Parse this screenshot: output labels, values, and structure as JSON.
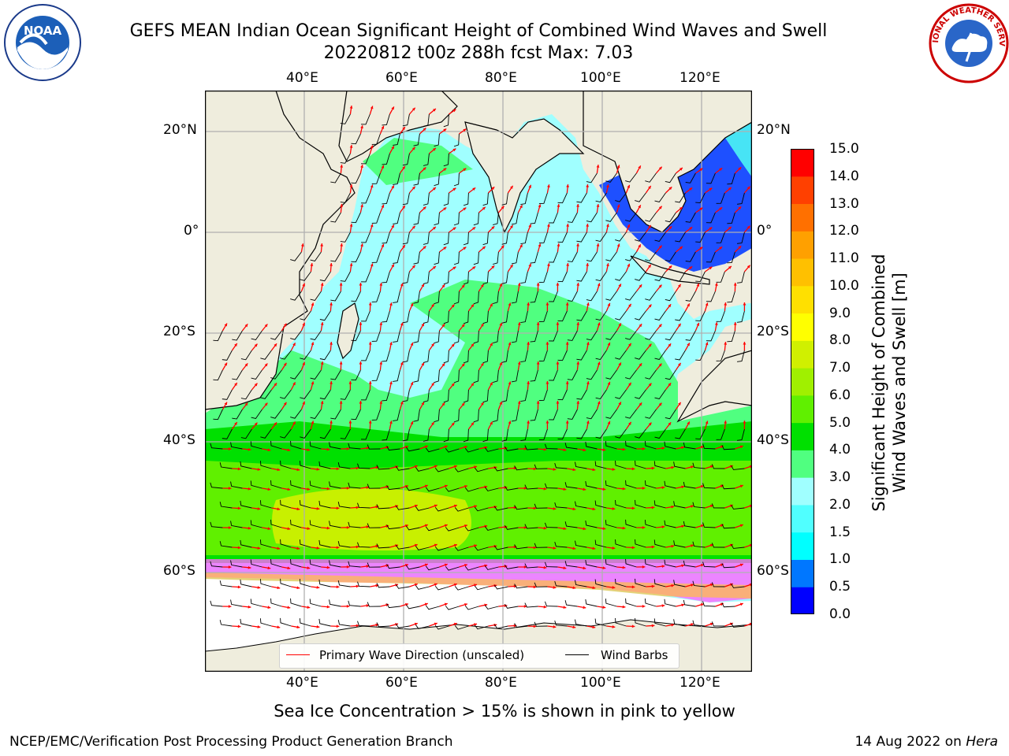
{
  "header": {
    "title_line1": "GEFS MEAN Indian Ocean Significant Height of Combined Wind Waves and Swell",
    "title_line2": "20220812 t00z 288h fcst   Max: 7.03"
  },
  "logos": {
    "left": {
      "icon": "noaa-logo",
      "text": "NOAA"
    },
    "right": {
      "icon": "nws-logo",
      "text": "NATIONAL WEATHER SERVICE"
    }
  },
  "map": {
    "top_lon_labels": [
      "40°E",
      "60°E",
      "80°E",
      "100°E",
      "120°E"
    ],
    "bottom_lon_labels": [
      "40°E",
      "60°E",
      "80°E",
      "100°E",
      "120°E"
    ],
    "left_lat_labels": [
      "20°N",
      "0°",
      "20°S",
      "40°S",
      "60°S"
    ],
    "right_lat_labels": [
      "20°N",
      "0°",
      "20°S",
      "40°S",
      "60°S"
    ],
    "lon_range": [
      20,
      130
    ],
    "lat_range": [
      -74,
      28
    ],
    "land_color": "#efeddd",
    "grid_color": "#b0b0b0"
  },
  "legend": {
    "primary_wave": "Primary Wave Direction (unscaled)",
    "wind_barbs": "Wind Barbs",
    "primary_wave_color": "#ff0000",
    "wind_barbs_color": "#000000"
  },
  "colorbar": {
    "title_line1": "Significant Height of Combined",
    "title_line2": "Wind Waves and Swell [m]",
    "labels": [
      "0.0",
      "0.5",
      "1.0",
      "1.5",
      "2.0",
      "3.0",
      "4.0",
      "5.0",
      "6.0",
      "7.0",
      "8.0",
      "9.0",
      "10.0",
      "11.0",
      "12.0",
      "13.0",
      "14.0",
      "15.0"
    ],
    "colors": [
      "#0000ff",
      "#0077ff",
      "#00ffff",
      "#50ffff",
      "#a0ffff",
      "#50ff80",
      "#00e000",
      "#60f000",
      "#a0f000",
      "#d0f000",
      "#ffff00",
      "#ffe000",
      "#ffc000",
      "#ffa000",
      "#ff7000",
      "#ff4000",
      "#ff0000"
    ]
  },
  "footnote": "Sea Ice Concentration > 15% is shown in pink to yellow",
  "footer": {
    "left": "NCEP/EMC/Verification Post Processing Product Generation Branch",
    "right_date": "14 Aug 2022 on ",
    "right_host": "Hera"
  }
}
